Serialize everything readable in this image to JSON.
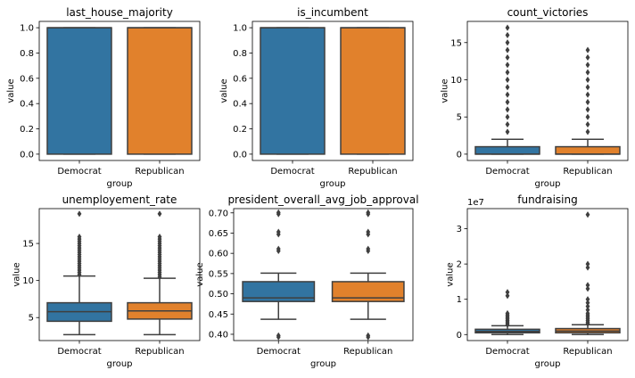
{
  "chart_data": [
    {
      "type": "box",
      "title": "last_house_majority",
      "xlabel": "group",
      "ylabel": "value",
      "categories": [
        "Democrat",
        "Republican"
      ],
      "colors": [
        "#3274a1",
        "#e1812c"
      ],
      "ylim": [
        -0.05,
        1.05
      ],
      "yticks": [
        0,
        0.2,
        0.4,
        0.6,
        0.8,
        1.0
      ],
      "ytick_labels": [
        "0.0",
        "0.2",
        "0.4",
        "0.6",
        "0.8",
        "1.0"
      ],
      "offset_text": "",
      "boxes": [
        {
          "whislo": 0,
          "q1": 0,
          "med": 1,
          "q3": 1,
          "whishi": 1,
          "fliers": []
        },
        {
          "whislo": 0,
          "q1": 0,
          "med": 1,
          "q3": 1,
          "whishi": 1,
          "fliers": []
        }
      ]
    },
    {
      "type": "box",
      "title": "is_incumbent",
      "xlabel": "group",
      "ylabel": "value",
      "categories": [
        "Democrat",
        "Republican"
      ],
      "colors": [
        "#3274a1",
        "#e1812c"
      ],
      "ylim": [
        -0.05,
        1.05
      ],
      "yticks": [
        0,
        0.2,
        0.4,
        0.6,
        0.8,
        1.0
      ],
      "ytick_labels": [
        "0.0",
        "0.2",
        "0.4",
        "0.6",
        "0.8",
        "1.0"
      ],
      "offset_text": "",
      "boxes": [
        {
          "whislo": 0,
          "q1": 0,
          "med": 1,
          "q3": 1,
          "whishi": 1,
          "fliers": []
        },
        {
          "whislo": 0,
          "q1": 0,
          "med": 1,
          "q3": 1,
          "whishi": 1,
          "fliers": []
        }
      ]
    },
    {
      "type": "box",
      "title": "count_victories",
      "xlabel": "group",
      "ylabel": "value",
      "categories": [
        "Democrat",
        "Republican"
      ],
      "colors": [
        "#3274a1",
        "#e1812c"
      ],
      "ylim": [
        -0.85,
        17.85
      ],
      "yticks": [
        0,
        5,
        10,
        15
      ],
      "ytick_labels": [
        "0",
        "5",
        "10",
        "15"
      ],
      "offset_text": "",
      "boxes": [
        {
          "whislo": 0,
          "q1": 0,
          "med": 0,
          "q3": 1,
          "whishi": 2,
          "fliers": [
            3,
            4,
            5,
            6,
            7,
            8,
            9,
            10,
            11,
            12,
            13,
            14,
            15,
            16,
            17
          ]
        },
        {
          "whislo": 0,
          "q1": 0,
          "med": 0,
          "q3": 1,
          "whishi": 2,
          "fliers": [
            3,
            4,
            5,
            6,
            7,
            8,
            9,
            10,
            11,
            12,
            13,
            14
          ]
        }
      ]
    },
    {
      "type": "box",
      "title": "unemployement_rate",
      "xlabel": "group",
      "ylabel": "value",
      "categories": [
        "Democrat",
        "Republican"
      ],
      "colors": [
        "#3274a1",
        "#e1812c"
      ],
      "ylim": [
        1.9,
        19.7
      ],
      "yticks": [
        5,
        10,
        15
      ],
      "ytick_labels": [
        "5",
        "10",
        "15"
      ],
      "offset_text": "",
      "boxes": [
        {
          "whislo": 2.7,
          "q1": 4.5,
          "med": 5.8,
          "q3": 7.0,
          "whishi": 10.6,
          "fliers": [
            10.8,
            11.1,
            11.4,
            11.7,
            12.0,
            12.3,
            12.6,
            12.9,
            13.2,
            13.5,
            13.8,
            14.1,
            14.4,
            14.7,
            15.0,
            15.3,
            15.6,
            15.9,
            19.0
          ]
        },
        {
          "whislo": 2.7,
          "q1": 4.8,
          "med": 5.9,
          "q3": 7.0,
          "whishi": 10.3,
          "fliers": [
            10.5,
            10.8,
            11.1,
            11.4,
            11.7,
            12.0,
            12.3,
            12.6,
            12.9,
            13.2,
            13.5,
            13.8,
            14.1,
            14.4,
            14.7,
            15.0,
            15.3,
            15.6,
            15.9,
            19.0
          ]
        }
      ]
    },
    {
      "type": "box",
      "title": "president_overall_avg_job_approval",
      "xlabel": "group",
      "ylabel": "value",
      "categories": [
        "Democrat",
        "Republican"
      ],
      "colors": [
        "#3274a1",
        "#e1812c"
      ],
      "ylim": [
        0.3845,
        0.7105
      ],
      "yticks": [
        0.4,
        0.45,
        0.5,
        0.55,
        0.6,
        0.65,
        0.7
      ],
      "ytick_labels": [
        "0.40",
        "0.45",
        "0.50",
        "0.55",
        "0.60",
        "0.65",
        "0.70"
      ],
      "offset_text": "",
      "boxes": [
        {
          "whislo": 0.437,
          "q1": 0.481,
          "med": 0.49,
          "q3": 0.53,
          "whishi": 0.551,
          "fliers": [
            0.393,
            0.397,
            0.606,
            0.611,
            0.647,
            0.653,
            0.697,
            0.701
          ]
        },
        {
          "whislo": 0.437,
          "q1": 0.481,
          "med": 0.49,
          "q3": 0.53,
          "whishi": 0.551,
          "fliers": [
            0.393,
            0.397,
            0.606,
            0.611,
            0.647,
            0.653,
            0.697,
            0.701
          ]
        }
      ]
    },
    {
      "type": "box",
      "title": "fundraising",
      "xlabel": "group",
      "ylabel": "value",
      "categories": [
        "Democrat",
        "Republican"
      ],
      "colors": [
        "#3274a1",
        "#e1812c"
      ],
      "ylim": [
        -1700000,
        35700000
      ],
      "yticks": [
        0,
        10000000,
        20000000,
        30000000
      ],
      "ytick_labels": [
        "0",
        "1",
        "2",
        "3"
      ],
      "offset_text": "1e7",
      "boxes": [
        {
          "whislo": 0,
          "q1": 500000,
          "med": 900000,
          "q3": 1500000,
          "whishi": 2500000,
          "fliers": [
            2800000,
            3200000,
            3600000,
            4000000,
            4400000,
            4800000,
            5200000,
            5600000,
            6000000,
            11000000,
            12000000
          ]
        },
        {
          "whislo": 0,
          "q1": 500000,
          "med": 1000000,
          "q3": 1700000,
          "whishi": 2800000,
          "fliers": [
            3100000,
            3500000,
            4000000,
            4500000,
            5000000,
            5500000,
            6000000,
            7000000,
            8000000,
            9000000,
            10000000,
            13000000,
            14000000,
            19000000,
            20000000,
            34000000
          ]
        }
      ]
    }
  ]
}
